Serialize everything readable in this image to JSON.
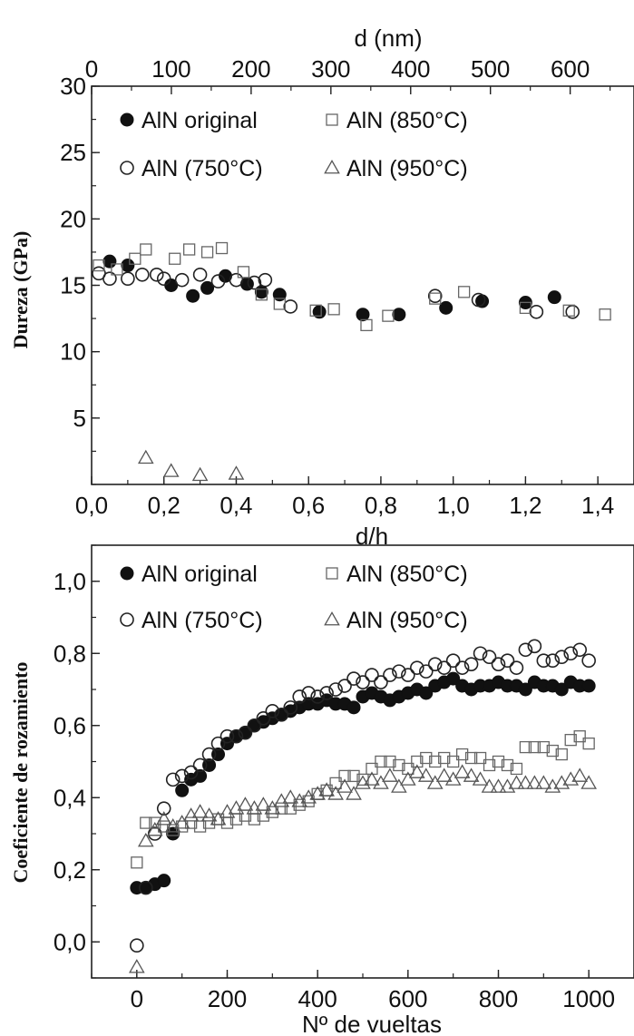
{
  "chart_data": [
    {
      "type": "scatter",
      "xlabel": "d/h",
      "x2label": "d (nm)",
      "ylabel": "Dureza (GPa)",
      "xlim": [
        0,
        1.5
      ],
      "x2lim": [
        0,
        680
      ],
      "ylim": [
        0,
        30
      ],
      "x_ticks": [
        "0,0",
        "0,2",
        "0,4",
        "0,6",
        "0,8",
        "1,0",
        "1,2",
        "1,4"
      ],
      "x2_ticks": [
        "0",
        "100",
        "200",
        "300",
        "400",
        "500",
        "600"
      ],
      "y_ticks": [
        "5",
        "10",
        "15",
        "20",
        "25",
        "30"
      ],
      "legend_position": "top-left",
      "series": [
        {
          "name": "AlN original",
          "marker": "filled-circle",
          "x": [
            0.05,
            0.1,
            0.22,
            0.28,
            0.32,
            0.37,
            0.43,
            0.47,
            0.52,
            0.63,
            0.75,
            0.85,
            0.98,
            1.08,
            1.2,
            1.28
          ],
          "y": [
            16.8,
            16.5,
            15.0,
            14.2,
            14.8,
            15.7,
            15.1,
            14.5,
            14.3,
            13.0,
            12.8,
            12.8,
            13.3,
            13.8,
            13.7,
            14.1
          ]
        },
        {
          "name": "AlN (750°C)",
          "marker": "open-circle",
          "x": [
            0.02,
            0.05,
            0.1,
            0.14,
            0.18,
            0.2,
            0.25,
            0.3,
            0.35,
            0.4,
            0.45,
            0.48,
            0.55,
            0.95,
            1.07,
            1.23,
            1.33
          ],
          "y": [
            15.9,
            15.5,
            15.5,
            15.8,
            15.8,
            15.5,
            15.4,
            15.8,
            15.3,
            15.4,
            15.2,
            15.4,
            13.4,
            14.2,
            13.9,
            13.0,
            13.0
          ]
        },
        {
          "name": "AlN (850°C)",
          "marker": "open-square",
          "x": [
            0.02,
            0.07,
            0.12,
            0.15,
            0.23,
            0.27,
            0.32,
            0.36,
            0.42,
            0.47,
            0.52,
            0.62,
            0.67,
            0.76,
            0.82,
            0.95,
            1.03,
            1.2,
            1.32,
            1.42
          ],
          "y": [
            16.5,
            16.2,
            17.0,
            17.7,
            17.0,
            17.7,
            17.5,
            17.8,
            16.0,
            14.3,
            13.6,
            13.1,
            13.2,
            12.0,
            12.7,
            14.0,
            14.5,
            13.3,
            13.1,
            12.8
          ]
        },
        {
          "name": "AlN (950°C)",
          "marker": "open-triangle",
          "x": [
            0.15,
            0.22,
            0.3,
            0.4
          ],
          "y": [
            2.0,
            1.0,
            0.7,
            0.8
          ]
        }
      ]
    },
    {
      "type": "scatter",
      "xlabel": "Nº de vueltas",
      "ylabel": "Coeficiente de rozamiento",
      "xlim": [
        -100,
        1100
      ],
      "ylim": [
        -0.1,
        1.1
      ],
      "x_ticks": [
        "0",
        "200",
        "400",
        "600",
        "800",
        "1000"
      ],
      "y_ticks": [
        "0,0",
        "0,2",
        "0,4",
        "0,6",
        "0,8",
        "1,0"
      ],
      "legend_position": "top-left",
      "series": [
        {
          "name": "AlN original",
          "marker": "filled-circle",
          "x": [
            0,
            20,
            40,
            60,
            80,
            100,
            120,
            140,
            160,
            180,
            200,
            220,
            240,
            260,
            280,
            300,
            320,
            340,
            360,
            380,
            400,
            420,
            440,
            460,
            480,
            500,
            520,
            540,
            560,
            580,
            600,
            620,
            640,
            660,
            680,
            700,
            720,
            740,
            760,
            780,
            800,
            820,
            840,
            860,
            880,
            900,
            920,
            940,
            960,
            980,
            1000
          ],
          "y": [
            0.15,
            0.15,
            0.16,
            0.17,
            0.3,
            0.42,
            0.45,
            0.46,
            0.49,
            0.52,
            0.55,
            0.57,
            0.58,
            0.6,
            0.61,
            0.62,
            0.63,
            0.64,
            0.65,
            0.66,
            0.66,
            0.67,
            0.66,
            0.66,
            0.65,
            0.68,
            0.69,
            0.68,
            0.67,
            0.68,
            0.69,
            0.7,
            0.69,
            0.71,
            0.72,
            0.73,
            0.71,
            0.7,
            0.71,
            0.71,
            0.72,
            0.71,
            0.71,
            0.7,
            0.72,
            0.71,
            0.71,
            0.7,
            0.72,
            0.71,
            0.71
          ]
        },
        {
          "name": "AlN (750°C)",
          "marker": "open-circle",
          "x": [
            0,
            20,
            40,
            60,
            80,
            100,
            120,
            140,
            160,
            180,
            200,
            220,
            240,
            260,
            280,
            300,
            320,
            340,
            360,
            380,
            400,
            420,
            440,
            460,
            480,
            500,
            520,
            540,
            560,
            580,
            600,
            620,
            640,
            660,
            680,
            700,
            720,
            740,
            760,
            780,
            800,
            820,
            840,
            860,
            880,
            900,
            920,
            940,
            960,
            980,
            1000
          ],
          "y": [
            -0.01,
            0.15,
            0.3,
            0.37,
            0.45,
            0.46,
            0.47,
            0.49,
            0.52,
            0.55,
            0.57,
            0.57,
            0.58,
            0.6,
            0.62,
            0.64,
            0.63,
            0.65,
            0.68,
            0.69,
            0.68,
            0.69,
            0.7,
            0.71,
            0.73,
            0.72,
            0.74,
            0.72,
            0.74,
            0.75,
            0.74,
            0.76,
            0.75,
            0.77,
            0.76,
            0.78,
            0.76,
            0.77,
            0.8,
            0.79,
            0.77,
            0.78,
            0.76,
            0.81,
            0.82,
            0.78,
            0.78,
            0.79,
            0.8,
            0.81,
            0.78
          ]
        },
        {
          "name": "AlN (850°C)",
          "marker": "open-square",
          "x": [
            0,
            20,
            40,
            60,
            80,
            100,
            120,
            140,
            160,
            180,
            200,
            220,
            240,
            260,
            280,
            300,
            320,
            340,
            360,
            380,
            400,
            420,
            440,
            460,
            480,
            500,
            520,
            540,
            560,
            580,
            600,
            620,
            640,
            660,
            680,
            700,
            720,
            740,
            760,
            780,
            800,
            820,
            840,
            860,
            880,
            900,
            920,
            940,
            960,
            980,
            1000
          ],
          "y": [
            0.22,
            0.33,
            0.33,
            0.32,
            0.31,
            0.32,
            0.33,
            0.32,
            0.33,
            0.34,
            0.33,
            0.34,
            0.35,
            0.34,
            0.35,
            0.36,
            0.37,
            0.37,
            0.38,
            0.39,
            0.41,
            0.42,
            0.44,
            0.46,
            0.46,
            0.45,
            0.48,
            0.5,
            0.5,
            0.49,
            0.48,
            0.5,
            0.51,
            0.5,
            0.51,
            0.5,
            0.52,
            0.51,
            0.51,
            0.49,
            0.5,
            0.49,
            0.48,
            0.54,
            0.54,
            0.54,
            0.53,
            0.52,
            0.56,
            0.57,
            0.55
          ]
        },
        {
          "name": "AlN (950°C)",
          "marker": "open-triangle",
          "x": [
            0,
            20,
            40,
            60,
            80,
            100,
            120,
            140,
            160,
            180,
            200,
            220,
            240,
            260,
            280,
            300,
            320,
            340,
            360,
            380,
            400,
            420,
            440,
            460,
            480,
            500,
            520,
            540,
            560,
            580,
            600,
            620,
            640,
            660,
            680,
            700,
            720,
            740,
            760,
            780,
            800,
            820,
            840,
            860,
            880,
            900,
            920,
            940,
            960,
            980,
            1000
          ],
          "y": [
            -0.07,
            0.28,
            0.31,
            0.34,
            0.32,
            0.33,
            0.35,
            0.36,
            0.35,
            0.34,
            0.36,
            0.37,
            0.38,
            0.37,
            0.38,
            0.37,
            0.39,
            0.4,
            0.39,
            0.4,
            0.41,
            0.42,
            0.41,
            0.43,
            0.41,
            0.44,
            0.45,
            0.44,
            0.46,
            0.43,
            0.45,
            0.47,
            0.46,
            0.44,
            0.46,
            0.45,
            0.47,
            0.46,
            0.45,
            0.43,
            0.43,
            0.43,
            0.44,
            0.44,
            0.44,
            0.44,
            0.43,
            0.44,
            0.45,
            0.46,
            0.44
          ]
        }
      ]
    }
  ]
}
